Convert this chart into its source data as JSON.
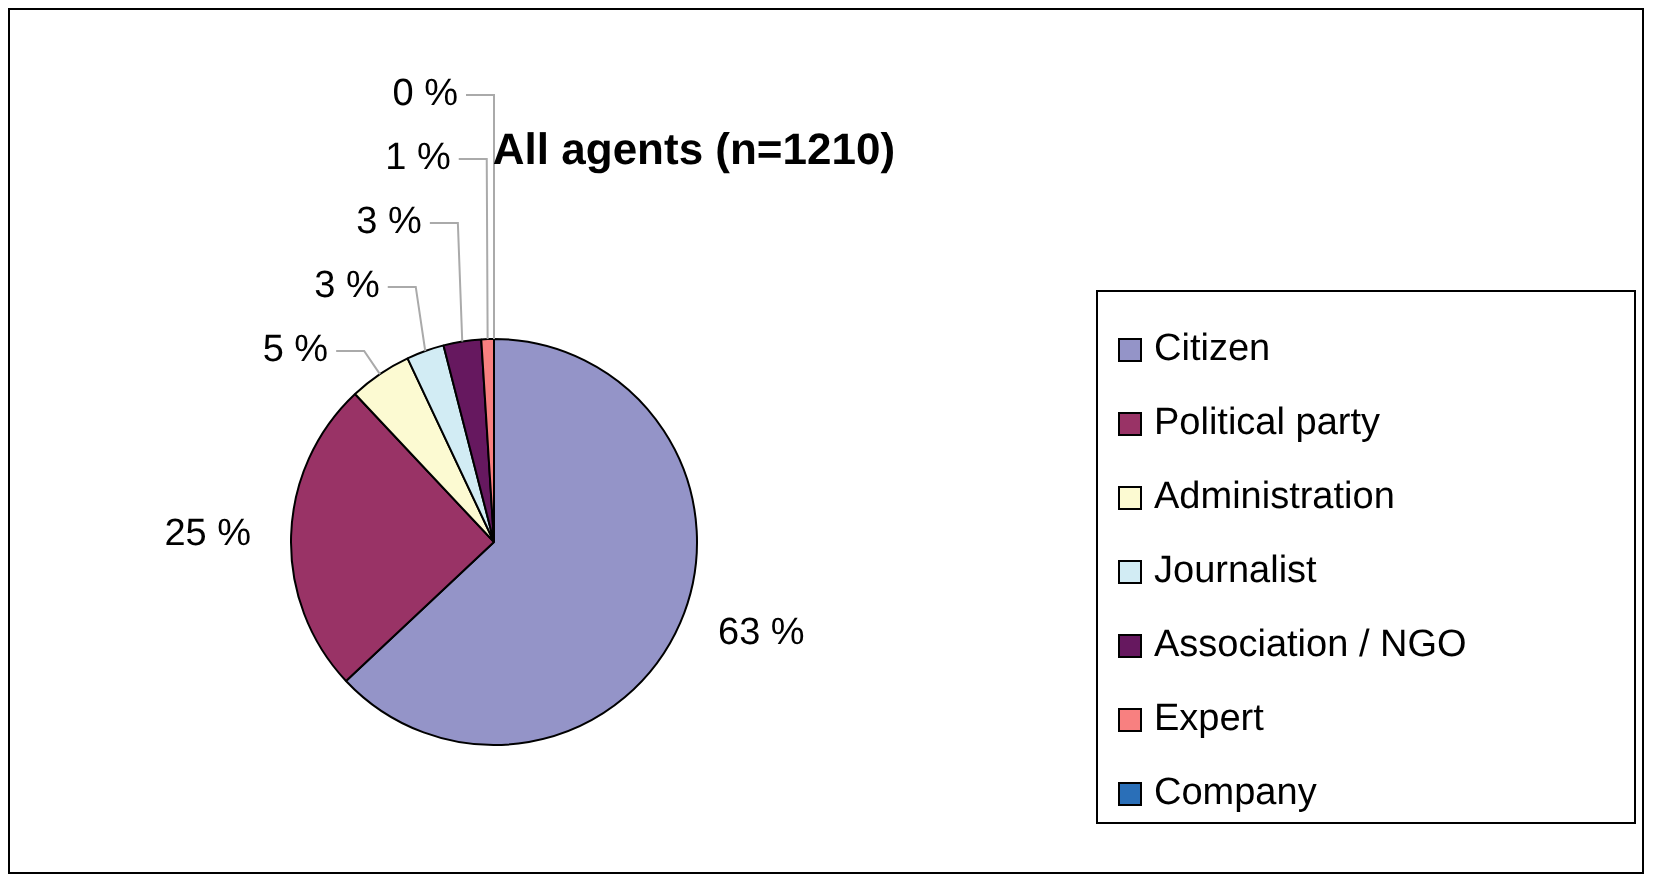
{
  "chart_data": {
    "type": "pie",
    "title": "All agents (n=1210)",
    "categories": [
      "Citizen",
      "Political party",
      "Administration",
      "Journalist",
      "Association / NGO",
      "Expert",
      "Company"
    ],
    "values": [
      63,
      25,
      5,
      3,
      3,
      1,
      0
    ],
    "value_labels": [
      "63 %",
      "25 %",
      "5 %",
      "3 %",
      "3 %",
      "1 %",
      "0 %"
    ],
    "colors": [
      "#9494c8",
      "#993366",
      "#fcfad2",
      "#d2ecf4",
      "#66185f",
      "#f88080",
      "#2a6fb8"
    ],
    "legend": "right"
  }
}
